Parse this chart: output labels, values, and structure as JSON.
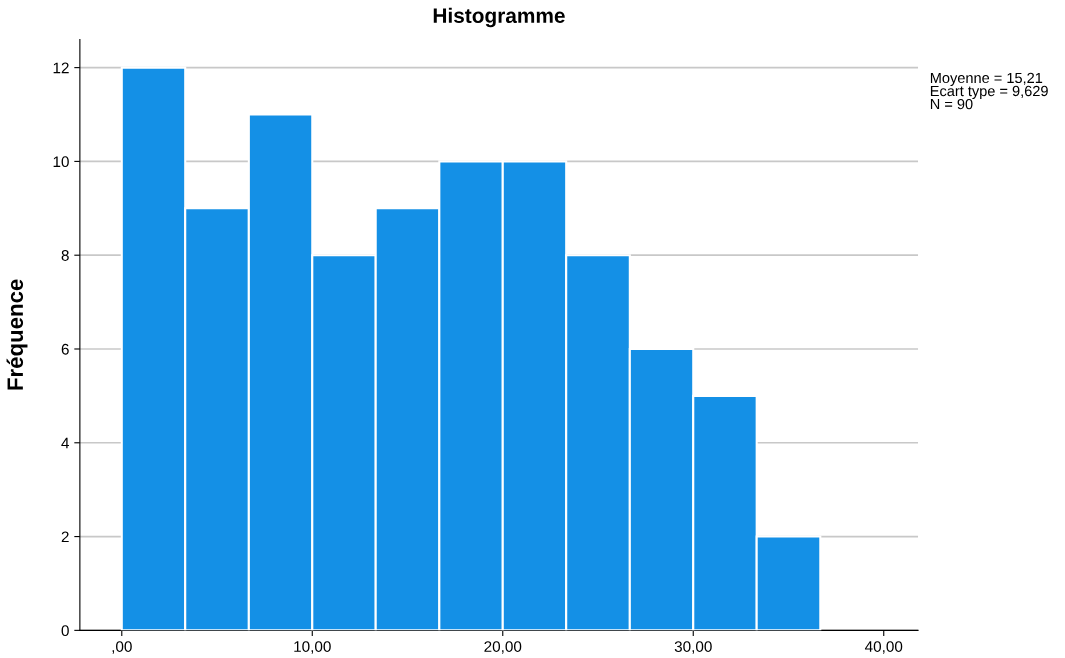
{
  "chart_data": {
    "type": "histogram",
    "title": "Histogramme",
    "ylabel": "Fréquence",
    "bins": [
      0,
      3.33,
      6.67,
      10,
      13.33,
      16.67,
      20,
      23.33,
      26.67,
      30,
      33.33,
      36.67
    ],
    "values": [
      12,
      9,
      11,
      8,
      9,
      10,
      10,
      8,
      6,
      5,
      2
    ],
    "color": "#1490e6",
    "xlim": [
      -2.2,
      41.8
    ],
    "xticks": [
      {
        "value": 0,
        "label": ",00"
      },
      {
        "value": 10,
        "label": "10,00"
      },
      {
        "value": 20,
        "label": "20,00"
      },
      {
        "value": 30,
        "label": "30,00"
      },
      {
        "value": 40,
        "label": "40,00"
      }
    ],
    "ylim": [
      0,
      12.6
    ],
    "yticks": [
      0,
      2,
      4,
      6,
      8,
      10,
      12
    ],
    "grid": "y",
    "annotations": [
      "Moyenne = 15,21\nEcart type = 9,629\nN = 90"
    ]
  }
}
